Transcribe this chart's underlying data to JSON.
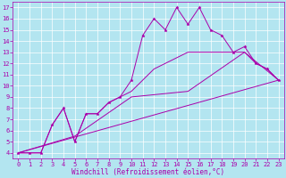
{
  "xlabel": "Windchill (Refroidissement éolien,°C)",
  "bg_color": "#b3e5f0",
  "line_color": "#aa00aa",
  "grid_color": "#ffffff",
  "spine_color": "#aa00aa",
  "tick_color": "#aa00aa",
  "xlim": [
    -0.5,
    23.5
  ],
  "ylim": [
    3.5,
    17.5
  ],
  "xticks": [
    0,
    1,
    2,
    3,
    4,
    5,
    6,
    7,
    8,
    9,
    10,
    11,
    12,
    13,
    14,
    15,
    16,
    17,
    18,
    19,
    20,
    21,
    22,
    23
  ],
  "yticks": [
    4,
    5,
    6,
    7,
    8,
    9,
    10,
    11,
    12,
    13,
    14,
    15,
    16,
    17
  ],
  "series1_x": [
    0,
    1,
    2,
    3,
    4,
    5,
    6,
    7,
    8,
    9,
    10,
    11,
    12,
    13,
    14,
    15,
    16,
    17,
    18,
    19,
    20,
    21,
    22,
    23
  ],
  "series1_y": [
    4,
    4,
    4,
    6.5,
    8,
    5,
    7.5,
    7.5,
    8.5,
    9,
    10.5,
    14.5,
    16,
    15,
    17,
    15.5,
    17,
    15,
    14.5,
    13,
    13.5,
    12,
    11.5,
    10.5
  ],
  "series2_x": [
    0,
    1,
    2,
    3,
    4,
    5,
    6,
    7,
    8,
    9,
    10,
    11,
    12,
    13,
    14,
    15,
    16,
    17,
    18,
    19,
    20,
    21,
    22,
    23
  ],
  "series2_y": [
    4,
    4,
    4,
    6.5,
    8,
    5,
    7.5,
    7.5,
    8.5,
    9,
    9.5,
    10.5,
    11.5,
    12,
    12.5,
    13,
    13,
    13,
    13,
    13,
    13,
    12,
    11.5,
    10.5
  ],
  "series3_x": [
    0,
    5,
    10,
    15,
    20,
    23
  ],
  "series3_y": [
    4,
    5.5,
    9,
    9.5,
    13,
    10.5
  ],
  "series4_x": [
    0,
    23
  ],
  "series4_y": [
    4,
    10.5
  ],
  "xlabel_fontsize": 5.5,
  "tick_fontsize": 5.0
}
